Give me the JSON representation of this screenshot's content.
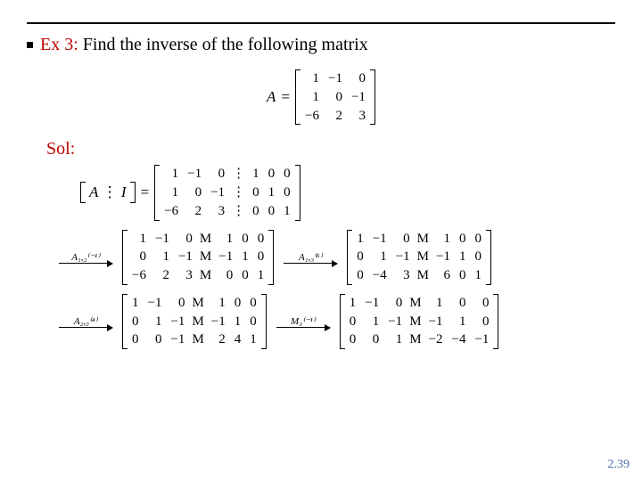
{
  "title": {
    "ex_label": "Ex 3:",
    "rest": "Find the inverse of the following matrix"
  },
  "sol_label": "Sol:",
  "A_label": "A",
  "eq": "=",
  "matrix_A": {
    "rows": [
      [
        "1",
        "−1",
        "0"
      ],
      [
        "1",
        "0",
        "−1"
      ],
      [
        "−6",
        "2",
        "3"
      ]
    ],
    "fontsize": 15
  },
  "AI_label": {
    "A": "A",
    "sep": "⋮",
    "I": "I"
  },
  "matrix_AI": {
    "rows": [
      [
        "1",
        "−1",
        "0",
        "⋮",
        "1",
        "0",
        "0"
      ],
      [
        "1",
        "0",
        "−1",
        "⋮",
        "0",
        "1",
        "0"
      ],
      [
        "−6",
        "2",
        "3",
        "⋮",
        "0",
        "0",
        "1"
      ]
    ]
  },
  "steps": [
    {
      "op_label": "A₁,₂⁽⁻¹⁾",
      "result": {
        "rows": [
          [
            "1",
            "−1",
            "0",
            "M",
            "1",
            "0",
            "0"
          ],
          [
            "0",
            "1",
            "−1",
            "M",
            "−1",
            "1",
            "0"
          ],
          [
            "−6",
            "2",
            "3",
            "M",
            "0",
            "0",
            "1"
          ]
        ]
      },
      "op_label2": "A₁,₃⁽⁶⁾",
      "result2": {
        "rows": [
          [
            "1",
            "−1",
            "0",
            "M",
            "1",
            "0",
            "0"
          ],
          [
            "0",
            "1",
            "−1",
            "M",
            "−1",
            "1",
            "0"
          ],
          [
            "0",
            "−4",
            "3",
            "M",
            "6",
            "0",
            "1"
          ]
        ]
      }
    },
    {
      "op_label": "A₂,₃⁽⁴⁾",
      "result": {
        "rows": [
          [
            "1",
            "−1",
            "0",
            "M",
            "1",
            "0",
            "0"
          ],
          [
            "0",
            "1",
            "−1",
            "M",
            "−1",
            "1",
            "0"
          ],
          [
            "0",
            "0",
            "−1",
            "M",
            "2",
            "4",
            "1"
          ]
        ]
      },
      "op_label2": "M₃⁽⁻¹⁾",
      "result2": {
        "rows": [
          [
            "1",
            "−1",
            "0",
            "M",
            "1",
            "0",
            "0"
          ],
          [
            "0",
            "1",
            "−1",
            "M",
            "−1",
            "1",
            "0"
          ],
          [
            "0",
            "0",
            "1",
            "M",
            "−2",
            "−4",
            "−1"
          ]
        ]
      }
    }
  ],
  "spacing": {
    "cell_pad": "1px 5px"
  },
  "page_number": "2.39",
  "colors": {
    "accent": "#c00000",
    "pagenum": "#4a6aa8",
    "rule": "#000000",
    "bg": "#ffffff"
  }
}
